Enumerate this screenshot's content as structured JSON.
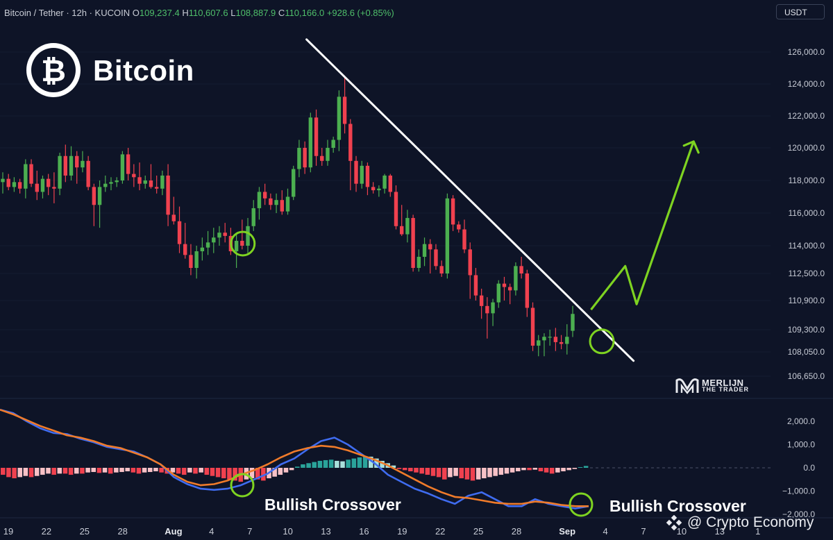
{
  "header": {
    "pair": "Bitcoin / Tether · 12h · KUCOIN",
    "open_label": "O",
    "open": "109,237.4",
    "high_label": "H",
    "high": "110,607.6",
    "low_label": "L",
    "low": "108,887.9",
    "close_label": "C",
    "close": "110,166.0",
    "change": "+928.6 (+0.85%)"
  },
  "currency_button": "USDT",
  "brand": "Bitcoin",
  "watermark": {
    "name": "MERLIJN",
    "sub": "THE TRADER"
  },
  "annotations": {
    "left": "Bullish Crossover",
    "right": "Bullish Crossover"
  },
  "credit": "@ Crypto Economy",
  "colors": {
    "background": "#0e1427",
    "up": "#4caf50",
    "down": "#f0414f",
    "macd": "#3f6cf0",
    "signal": "#f07b2a",
    "hist_pos_strong": "#2aa39a",
    "hist_pos_weak": "#a9e0db",
    "hist_neg_strong": "#f0414f",
    "hist_neg_weak": "#f7c1c6",
    "projection": "#7ed321",
    "trendline": "#ffffff"
  },
  "chart_data": [
    {
      "type": "candlestick",
      "interval": "12h",
      "y_axis_ticks": [
        "126,000.0",
        "124,000.0",
        "122,000.0",
        "120,000.0",
        "118,000.0",
        "116,000.0",
        "114,000.0",
        "112,500.0",
        "110,900.0",
        "109,300.0",
        "108,050.0",
        "106,650.0"
      ],
      "y_axis_values": [
        126000,
        124000,
        122000,
        120000,
        118000,
        116000,
        114000,
        112500,
        110900,
        109300,
        108050,
        106650
      ],
      "x_axis_ticks": [
        "19",
        "22",
        "25",
        "28",
        "Aug",
        "4",
        "7",
        "10",
        "13",
        "16",
        "19",
        "22",
        "25",
        "28",
        "Sep",
        "4",
        "7",
        "10",
        "13",
        "1"
      ],
      "x_axis_day_index": [
        0,
        3,
        6,
        9,
        13,
        16,
        19,
        22,
        25,
        28,
        31,
        34,
        37,
        40,
        44,
        47,
        50,
        53,
        56,
        59
      ],
      "ohlc": [
        [
          117900,
          118500,
          117200,
          118100
        ],
        [
          118100,
          118400,
          117400,
          117600
        ],
        [
          117600,
          118200,
          117300,
          117900
        ],
        [
          117900,
          118100,
          117200,
          117500
        ],
        [
          117500,
          119300,
          116900,
          119000
        ],
        [
          119000,
          119300,
          117600,
          117800
        ],
        [
          117800,
          118600,
          116800,
          117300
        ],
        [
          117300,
          118300,
          116900,
          118100
        ],
        [
          118100,
          118400,
          117100,
          117600
        ],
        [
          117600,
          118500,
          116600,
          117500
        ],
        [
          117500,
          119700,
          117100,
          119500
        ],
        [
          119500,
          120200,
          117900,
          118300
        ],
        [
          118300,
          120100,
          118000,
          119500
        ],
        [
          119500,
          119800,
          117800,
          118800
        ],
        [
          118800,
          119800,
          118500,
          119200
        ],
        [
          119200,
          119500,
          117400,
          117600
        ],
        [
          117600,
          117800,
          115200,
          116500
        ],
        [
          116500,
          118000,
          115100,
          117600
        ],
        [
          117600,
          118300,
          117300,
          117800
        ],
        [
          117800,
          118200,
          117400,
          117900
        ],
        [
          117900,
          118200,
          117600,
          118000
        ],
        [
          118000,
          119800,
          117800,
          119600
        ],
        [
          119600,
          120000,
          118000,
          118400
        ],
        [
          118400,
          119000,
          117600,
          118200
        ],
        [
          118200,
          119100,
          117400,
          117800
        ],
        [
          117800,
          118300,
          117500,
          118000
        ],
        [
          118000,
          119000,
          117500,
          117600
        ],
        [
          117600,
          118300,
          117200,
          117500
        ],
        [
          117500,
          118600,
          117100,
          118300
        ],
        [
          118300,
          119000,
          115200,
          115900
        ],
        [
          115900,
          117000,
          115300,
          115500
        ],
        [
          115500,
          116400,
          113600,
          114100
        ],
        [
          114100,
          115400,
          113300,
          113500
        ],
        [
          113500,
          114100,
          112400,
          112800
        ],
        [
          112800,
          114000,
          112200,
          113700
        ],
        [
          113700,
          114500,
          113200,
          113900
        ],
        [
          113900,
          114900,
          113500,
          114200
        ],
        [
          114200,
          115100,
          113600,
          114500
        ],
        [
          114500,
          115200,
          114000,
          114800
        ],
        [
          114800,
          115400,
          114200,
          114600
        ],
        [
          114600,
          115100,
          113500,
          113700
        ],
        [
          113700,
          114700,
          112800,
          114300
        ],
        [
          114300,
          115600,
          113800,
          114000
        ],
        [
          114000,
          115700,
          113600,
          115200
        ],
        [
          115200,
          116800,
          114900,
          116300
        ],
        [
          116300,
          117600,
          115600,
          117300
        ],
        [
          117300,
          117800,
          116500,
          116900
        ],
        [
          116900,
          117200,
          116200,
          116500
        ],
        [
          116500,
          117200,
          116000,
          116800
        ],
        [
          116800,
          117400,
          115900,
          116100
        ],
        [
          116100,
          117500,
          115900,
          117000
        ],
        [
          117000,
          118900,
          116800,
          118700
        ],
        [
          118700,
          120500,
          118200,
          120000
        ],
        [
          120000,
          120400,
          118400,
          118800
        ],
        [
          118800,
          122200,
          118500,
          121900
        ],
        [
          121900,
          122400,
          118900,
          119500
        ],
        [
          119500,
          120000,
          118900,
          119200
        ],
        [
          119200,
          120500,
          118900,
          120000
        ],
        [
          120000,
          120700,
          119700,
          120500
        ],
        [
          120500,
          123600,
          119800,
          123200
        ],
        [
          123200,
          124400,
          120900,
          121500
        ],
        [
          121500,
          121800,
          117400,
          119200
        ],
        [
          119200,
          119500,
          117300,
          117800
        ],
        [
          117800,
          119200,
          117500,
          118900
        ],
        [
          118900,
          119100,
          117100,
          117600
        ],
        [
          117600,
          117900,
          117200,
          117400
        ],
        [
          117400,
          117700,
          117000,
          117500
        ],
        [
          117500,
          118400,
          117200,
          118300
        ],
        [
          118300,
          118400,
          117000,
          117300
        ],
        [
          117300,
          117700,
          115000,
          115200
        ],
        [
          115200,
          116500,
          114600,
          114700
        ],
        [
          114700,
          116200,
          114200,
          115700
        ],
        [
          115700,
          115900,
          112600,
          112800
        ],
        [
          112800,
          113800,
          112600,
          113400
        ],
        [
          113400,
          114500,
          112900,
          114100
        ],
        [
          114100,
          114400,
          112500,
          113800
        ],
        [
          113800,
          114100,
          112700,
          112900
        ],
        [
          112900,
          113200,
          112300,
          112500
        ],
        [
          112500,
          117200,
          112200,
          116900
        ],
        [
          116900,
          117100,
          114900,
          115300
        ],
        [
          115300,
          115500,
          114800,
          115000
        ],
        [
          115000,
          115600,
          113600,
          113800
        ],
        [
          113800,
          114200,
          111000,
          112400
        ],
        [
          112400,
          112800,
          110900,
          111200
        ],
        [
          111200,
          111600,
          109900,
          110600
        ],
        [
          110600,
          111100,
          108800,
          110200
        ],
        [
          110200,
          111000,
          109500,
          110800
        ],
        [
          110800,
          112100,
          110500,
          111900
        ],
        [
          111900,
          112300,
          110900,
          111700
        ],
        [
          111700,
          111900,
          110700,
          111500
        ],
        [
          111500,
          113100,
          111200,
          112900
        ],
        [
          112900,
          113400,
          112200,
          112500
        ],
        [
          112500,
          112700,
          110000,
          110500
        ],
        [
          110500,
          110800,
          108100,
          108400
        ],
        [
          108400,
          109000,
          107800,
          108700
        ],
        [
          108700,
          109100,
          107800,
          108900
        ],
        [
          108900,
          109300,
          108400,
          108900
        ],
        [
          108900,
          109400,
          108100,
          108600
        ],
        [
          108600,
          109000,
          108200,
          108500
        ],
        [
          108500,
          109600,
          107900,
          108900
        ],
        [
          109237.4,
          110607.6,
          108887.9,
          110166.0
        ]
      ],
      "trendline": {
        "from_candle": 60,
        "from_price": 124400,
        "to_candle": 103,
        "to_price": 108800
      },
      "projection_path": [
        [
          102,
          110400
        ],
        [
          108,
          112900
        ],
        [
          110,
          110700
        ],
        [
          120,
          120400
        ]
      ],
      "crossover_markers": [
        [
          37,
          114300
        ],
        [
          100,
          108800
        ]
      ]
    },
    {
      "type": "macd",
      "y_axis_ticks": [
        "2,000.0",
        "1,000.0",
        "0.0",
        "−1,000.0",
        "−2,000.0"
      ],
      "y_axis_values": [
        2000,
        1000,
        0,
        -1000,
        -2000
      ],
      "macd_line": [
        2500,
        2350,
        2000,
        1700,
        1500,
        1450,
        1250,
        1100,
        900,
        800,
        700,
        450,
        150,
        -400,
        -700,
        -900,
        -950,
        -900,
        -750,
        -500,
        -250,
        150,
        400,
        800,
        1150,
        1300,
        1000,
        600,
        200,
        -300,
        -600,
        -900,
        -1100,
        -1350,
        -1550,
        -1200,
        -1050,
        -1350,
        -1650,
        -1650,
        -1350,
        -1550,
        -1650,
        -1750,
        -1650
      ],
      "signal_line": [
        2500,
        2300,
        2050,
        1800,
        1600,
        1400,
        1300,
        1150,
        950,
        850,
        650,
        450,
        150,
        -300,
        -600,
        -750,
        -700,
        -550,
        -300,
        -100,
        150,
        450,
        700,
        850,
        950,
        900,
        750,
        550,
        350,
        100,
        -200,
        -500,
        -800,
        -1050,
        -1250,
        -1300,
        -1400,
        -1500,
        -1550,
        -1550,
        -1450,
        -1500,
        -1600,
        -1650,
        -1650
      ],
      "histogram": [
        -300,
        -400,
        -450,
        -400,
        -350,
        -400,
        -350,
        -300,
        -250,
        -300,
        -250,
        -250,
        -300,
        -250,
        -250,
        -200,
        -180,
        -220,
        -200,
        -250,
        -200,
        -180,
        -150,
        -200,
        -250,
        -200,
        -180,
        -150,
        -200,
        -250,
        -200,
        -250,
        -300,
        -200,
        -250,
        -200,
        -300,
        -350,
        -400,
        -450,
        -500,
        -550,
        -600,
        -500,
        -450,
        -500,
        -550,
        -450,
        -380,
        -300,
        -200,
        -100,
        50,
        150,
        200,
        250,
        300,
        330,
        350,
        300,
        280,
        350,
        400,
        450,
        500,
        480,
        400,
        300,
        200,
        100,
        -50,
        -100,
        -150,
        -200,
        -250,
        -300,
        -350,
        -400,
        -500,
        -400,
        -350,
        -450,
        -500,
        -550,
        -500,
        -450,
        -400,
        -350,
        -300,
        -250,
        -200,
        -150,
        -100,
        -100,
        -80,
        -150,
        -200,
        -250,
        -200,
        -150,
        -100,
        -50,
        30,
        80
      ]
    }
  ]
}
